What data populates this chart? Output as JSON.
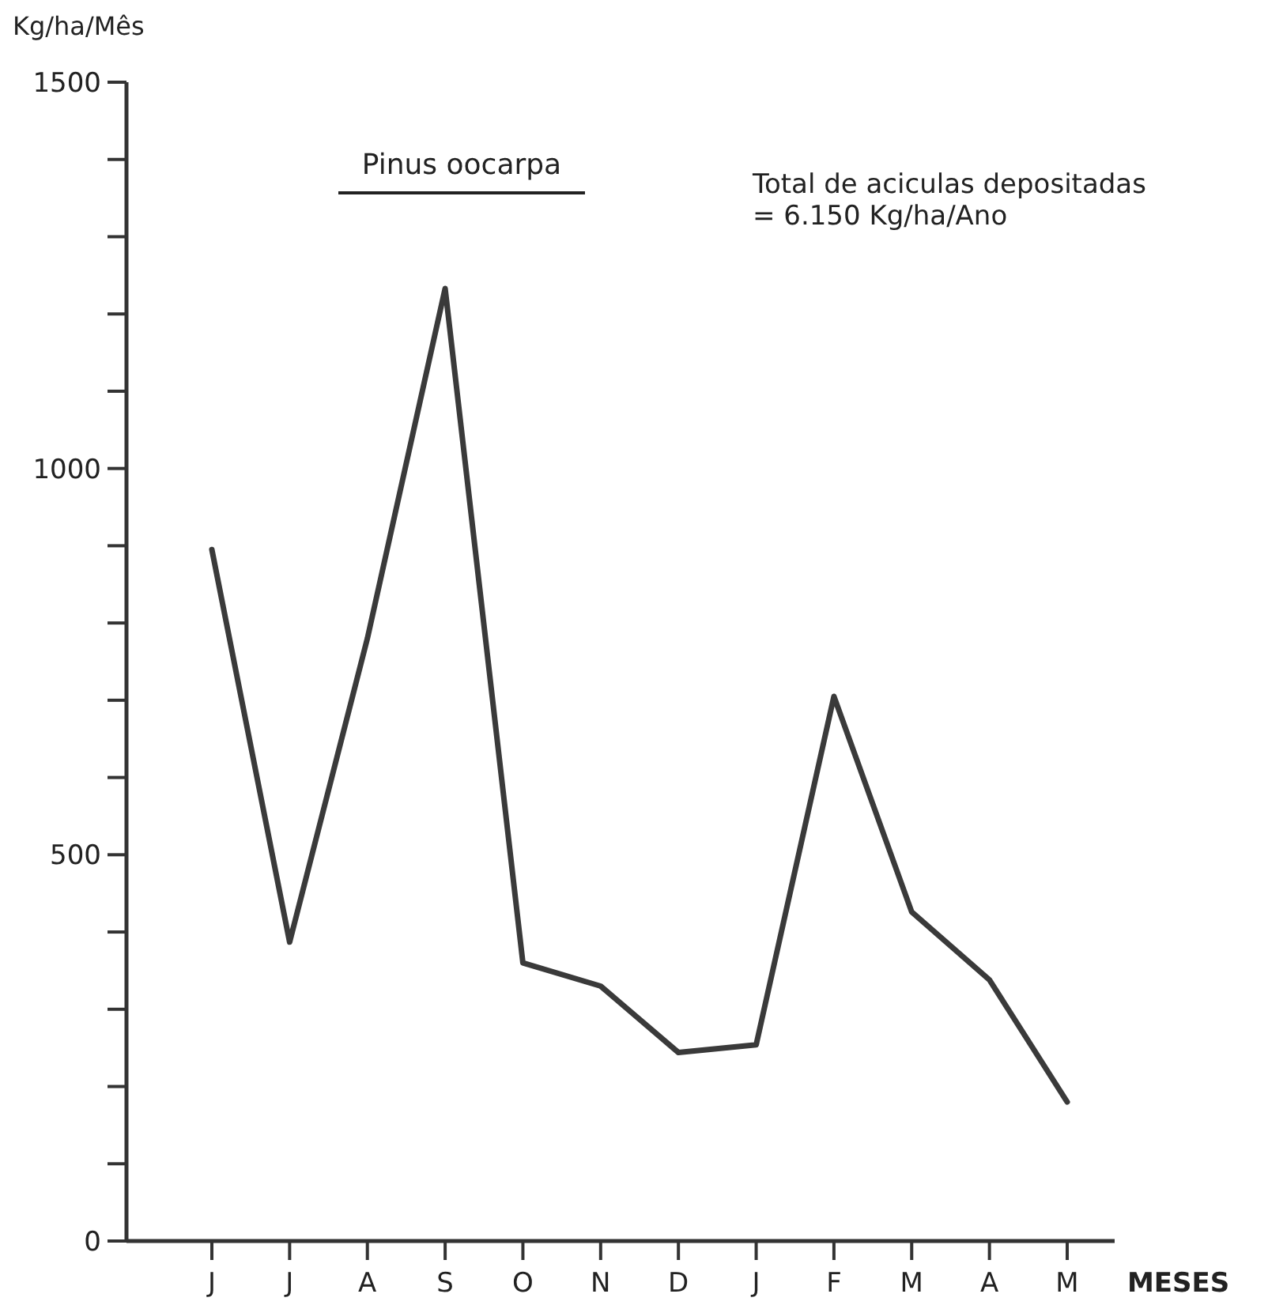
{
  "chart_data": {
    "type": "line",
    "title": "Pinus oocarpa",
    "ylabel": "Kg/ha/Mês",
    "xlabel": "MESES",
    "annotations": [
      "Total de aciculas depositadas\n= 6.150 Kg/ha/Ano"
    ],
    "categories": [
      "J",
      "J",
      "A",
      "S",
      "O",
      "N",
      "D",
      "J",
      "F",
      "M",
      "A",
      "M"
    ],
    "series": [
      {
        "color": "#3a3a3a",
        "values": [
          895,
          387,
          780,
          1233,
          360,
          330,
          244,
          254,
          705,
          426,
          338,
          180
        ]
      }
    ],
    "ylim": [
      0,
      1500
    ],
    "yticks": [
      0,
      {
        "value": 100,
        "label": null
      },
      {
        "value": 200,
        "label": null
      },
      {
        "value": 300,
        "label": null
      },
      {
        "value": 400,
        "label": null
      },
      500,
      {
        "value": 600,
        "label": null
      },
      {
        "value": 700,
        "label": null
      },
      {
        "value": 800,
        "label": null
      },
      {
        "value": 900,
        "label": null
      },
      1000,
      {
        "value": 1100,
        "label": null
      },
      {
        "value": 1200,
        "label": null
      },
      {
        "value": 1300,
        "label": null
      },
      {
        "value": 1400,
        "label": null
      },
      1500
    ],
    "grid": false,
    "marker": "none",
    "line_style": "solid"
  }
}
